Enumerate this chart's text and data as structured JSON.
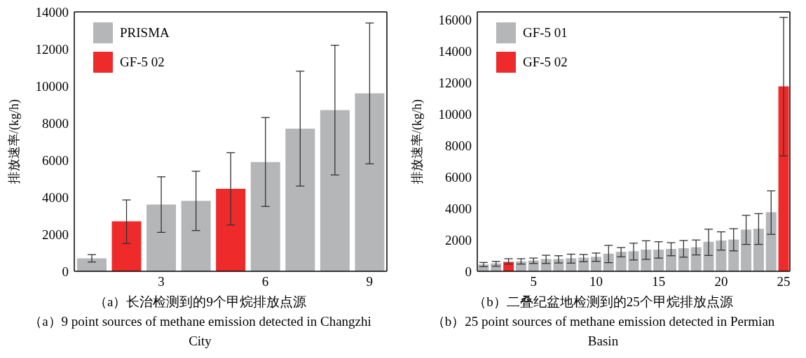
{
  "chart_data": [
    {
      "type": "bar",
      "ylabel": "排放速率/(kg/h)",
      "categories": [
        null,
        null,
        "3",
        null,
        null,
        "6",
        null,
        null,
        "9"
      ],
      "ylim": [
        0,
        14000
      ],
      "yticks": [
        0,
        2000,
        4000,
        6000,
        8000,
        10000,
        12000,
        14000
      ],
      "legend": "top left",
      "series": [
        {
          "name": "PRISMA",
          "color": "#b5b6b8",
          "values": [
            700,
            null,
            3600,
            3800,
            null,
            5900,
            7700,
            8700,
            9600
          ],
          "errors": [
            [
              500,
              900
            ],
            null,
            [
              2100,
              5100
            ],
            [
              2200,
              5400
            ],
            null,
            [
              3500,
              8300
            ],
            [
              4600,
              10800
            ],
            [
              5200,
              12200
            ],
            [
              5800,
              13400
            ]
          ]
        },
        {
          "name": "GF-5 02",
          "color": "#ee2a2a",
          "values": [
            null,
            2700,
            null,
            null,
            4450,
            null,
            null,
            null,
            null
          ],
          "errors": [
            null,
            [
              1500,
              3850
            ],
            null,
            null,
            [
              2500,
              6400
            ],
            null,
            null,
            null,
            null
          ]
        }
      ],
      "annotations": [
        "（a）长治检测到的9个甲烷排放点源",
        "（a）9 point sources of methane emission detected in Changzhi City"
      ]
    },
    {
      "type": "bar",
      "ylabel": "排放速率/(kg/h)",
      "categories": [
        null,
        null,
        null,
        null,
        "5",
        null,
        null,
        null,
        null,
        "10",
        null,
        null,
        null,
        null,
        "15",
        null,
        null,
        null,
        null,
        "20",
        null,
        null,
        null,
        null,
        "25"
      ],
      "ylim": [
        0,
        16500
      ],
      "yticks": [
        0,
        2000,
        4000,
        6000,
        8000,
        10000,
        12000,
        14000,
        16000
      ],
      "legend": "top left",
      "series": [
        {
          "name": "GF-5 01",
          "color": "#b5b6b8",
          "values": [
            430,
            500,
            null,
            630,
            690,
            780,
            780,
            830,
            870,
            920,
            1120,
            1240,
            1280,
            1380,
            1380,
            1420,
            1470,
            1530,
            1880,
            1960,
            2020,
            2650,
            2710,
            3760,
            null
          ],
          "errors": [
            [
              300,
              560
            ],
            [
              320,
              630
            ],
            null,
            [
              460,
              800
            ],
            [
              500,
              840
            ],
            [
              500,
              1020
            ],
            [
              530,
              990
            ],
            [
              520,
              1090
            ],
            [
              610,
              1070
            ],
            [
              630,
              1160
            ],
            [
              550,
              1650
            ],
            [
              920,
              1510
            ],
            [
              720,
              1790
            ],
            [
              760,
              1940
            ],
            [
              840,
              1880
            ],
            [
              990,
              1820
            ],
            [
              900,
              1960
            ],
            [
              1040,
              1990
            ],
            [
              1010,
              2680
            ],
            [
              1350,
              2510
            ],
            [
              1300,
              2710
            ],
            [
              1710,
              3560
            ],
            [
              1710,
              3670
            ],
            [
              2350,
              5120
            ],
            null
          ]
        },
        {
          "name": "GF-5 02",
          "color": "#ee2a2a",
          "values": [
            null,
            null,
            600,
            null,
            null,
            null,
            null,
            null,
            null,
            null,
            null,
            null,
            null,
            null,
            null,
            null,
            null,
            null,
            null,
            null,
            null,
            null,
            null,
            null,
            11760
          ],
          "errors": [
            null,
            null,
            [
              460,
              800
            ],
            null,
            null,
            null,
            null,
            null,
            null,
            null,
            null,
            null,
            null,
            null,
            null,
            null,
            null,
            null,
            null,
            null,
            null,
            null,
            null,
            null,
            [
              7340,
              16150
            ]
          ]
        }
      ],
      "annotations": [
        "（b）二叠纪盆地检测到的25个甲烷排放点源",
        "（b）25 point sources of methane emission detected in Permian Basin"
      ]
    }
  ]
}
